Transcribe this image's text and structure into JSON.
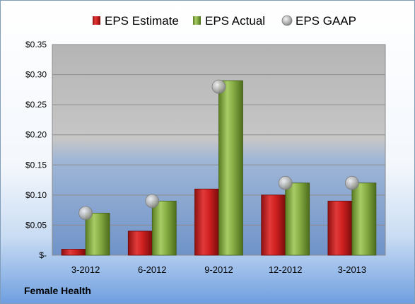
{
  "chart_data": {
    "type": "bar",
    "categories": [
      "3-2012",
      "6-2012",
      "9-2012",
      "12-2012",
      "3-2013"
    ],
    "series": [
      {
        "name": "EPS Estimate",
        "kind": "bar",
        "color": "#cc1f1f",
        "values": [
          0.01,
          0.04,
          0.11,
          0.1,
          0.09
        ]
      },
      {
        "name": "EPS Actual",
        "kind": "bar",
        "color": "#7da83a",
        "values": [
          0.07,
          0.09,
          0.29,
          0.12,
          0.12
        ]
      },
      {
        "name": "EPS GAAP",
        "kind": "marker",
        "color": "#a6a6a6",
        "values": [
          0.07,
          0.09,
          0.28,
          0.12,
          0.12
        ]
      }
    ],
    "yticks": [
      "$-",
      "$0.05",
      "$0.10",
      "$0.15",
      "$0.20",
      "$0.25",
      "$0.30",
      "$0.35"
    ],
    "ylim": [
      0,
      0.35
    ],
    "grid": true,
    "legend_position": "top"
  },
  "company": "Female Health"
}
